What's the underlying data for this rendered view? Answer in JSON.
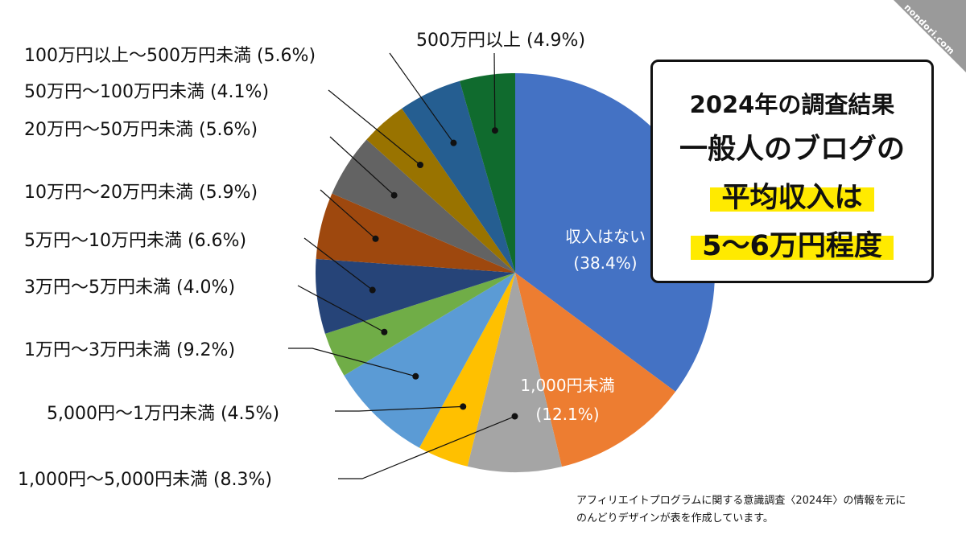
{
  "chart_data": {
    "type": "pie",
    "start_angle_deg": 0,
    "direction": "clockwise",
    "categories": [
      "収入はない",
      "1,000円未満",
      "1,000円〜5,000円未満",
      "5,000円〜1万円未満",
      "1万円〜3万円未満",
      "3万円〜5万円未満",
      "5万円〜10万円未満",
      "10万円〜20万円未満",
      "20万円〜50万円未満",
      "50万円〜100万円未満",
      "100万円以上〜500万円未満",
      "500万円以上"
    ],
    "values": [
      38.4,
      12.1,
      8.3,
      4.5,
      9.2,
      4.0,
      6.6,
      5.9,
      5.6,
      4.1,
      5.6,
      4.9
    ],
    "value_labels": [
      "(38.4%)",
      "(12.1%)",
      "(8.3%)",
      "(4.5%)",
      "(9.2%)",
      "(4.0%)",
      "(6.6%)",
      "(5.9%)",
      "(5.6%)",
      "(4.1%)",
      "(5.6%)",
      "(4.9%)"
    ],
    "colors": [
      "#4472c4",
      "#ed7d31",
      "#a5a5a5",
      "#ffc000",
      "#5b9bd5",
      "#70ad47",
      "#264478",
      "#9e480e",
      "#636363",
      "#997300",
      "#255e91",
      "#106b2e"
    ],
    "title": "",
    "legend": "none"
  },
  "labels_inside": {
    "no_income": {
      "line1": "収入はない",
      "line2": "(38.4%)"
    },
    "under_1000": {
      "line1": "1,000円未満",
      "line2": "(12.1%)"
    }
  },
  "labels_outside": [
    "500万円以上 (4.9%)",
    "100万円以上〜500万円未満 (5.6%)",
    "50万円〜100万円未満 (4.1%)",
    "20万円〜50万円未満 (5.6%)",
    "10万円〜20万円未満 (5.9%)",
    "5万円〜10万円未満 (6.6%)",
    "3万円〜5万円未満 (4.0%)",
    "1万円〜3万円未満 (9.2%)",
    "5,000円〜1万円未満 (4.5%)",
    "1,000円〜5,000円未満 (8.3%)"
  ],
  "infobox": {
    "line1": "2024年の調査結果",
    "line2": "一般人のブログの",
    "line3": "平均収入は",
    "line4": "5〜6万円程度",
    "highlight_color": "#ffea00"
  },
  "source": {
    "line1": "アフィリエイトプログラムに関する意識調査〈2024年〉の情報を元に",
    "line2": "のんどりデザインが表を作成しています。"
  },
  "watermark": "nondori.com"
}
